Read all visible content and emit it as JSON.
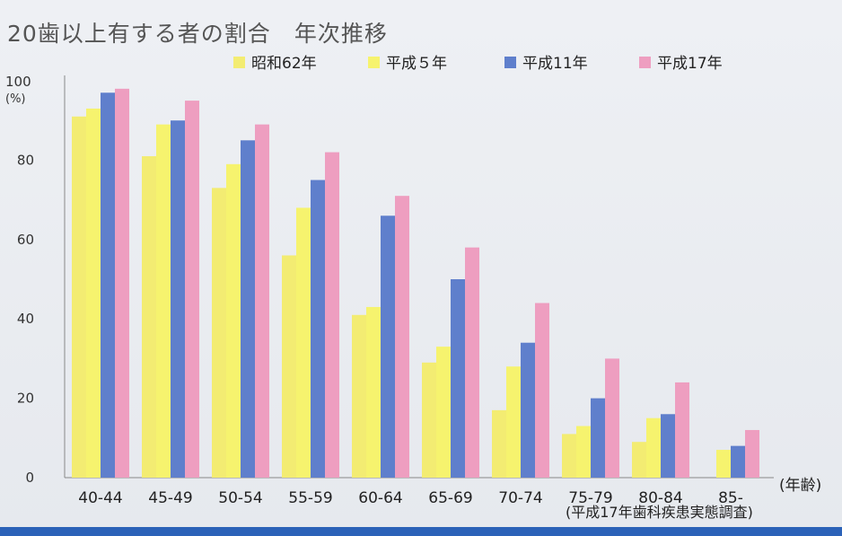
{
  "chart_data": {
    "type": "bar",
    "title": "20歯以上有する者の割合　年次推移",
    "ylabel_top": "100",
    "ylabel_unit": "(%)",
    "xlabel": "(年齢)",
    "source": "(平成17年歯科疾患実態調査)",
    "ylim": [
      0,
      100
    ],
    "yticks": [
      "0",
      "20",
      "40",
      "60",
      "80"
    ],
    "categories": [
      "40-44",
      "45-49",
      "50-54",
      "55-59",
      "60-64",
      "65-69",
      "70-74",
      "75-79",
      "80-84",
      "85-"
    ],
    "legend_position": "top",
    "series": [
      {
        "name": "昭和62年",
        "color": "#f3ec72",
        "values": [
          91,
          81,
          73,
          56,
          41,
          29,
          17,
          11,
          9,
          0
        ]
      },
      {
        "name": "平成５年",
        "color": "#f6f36e",
        "values": [
          93,
          89,
          79,
          68,
          43,
          33,
          28,
          13,
          15,
          7
        ]
      },
      {
        "name": "平成11年",
        "color": "#5f7fcc",
        "values": [
          97,
          90,
          85,
          75,
          66,
          50,
          34,
          20,
          16,
          8
        ]
      },
      {
        "name": "平成17年",
        "color": "#ee9ec0",
        "values": [
          98,
          95,
          89,
          82,
          71,
          58,
          44,
          30,
          24,
          12
        ]
      }
    ]
  }
}
